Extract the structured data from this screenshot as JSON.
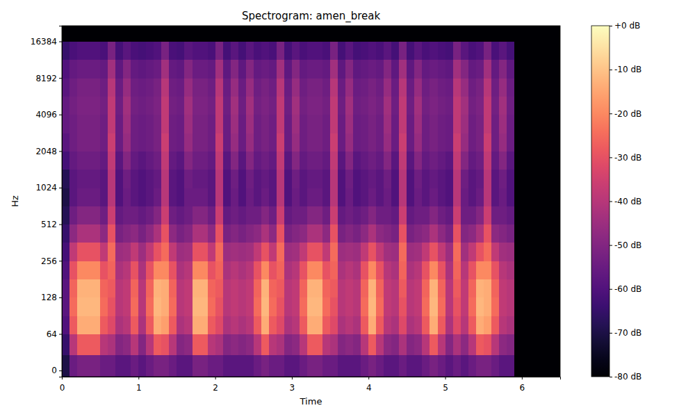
{
  "chart_data": {
    "type": "heatmap",
    "title": "Spectrogram: amen_break",
    "x_label": "Time",
    "y_label": "Hz",
    "log": "y",
    "color": "magma",
    "xlim": [
      0,
      6.5
    ],
    "xticks": [
      0,
      1,
      2,
      3,
      4,
      5,
      6
    ],
    "ylim": [
      -10.8,
      22050
    ],
    "yticks": [
      0,
      64,
      128,
      256,
      512,
      1024,
      2048,
      4096,
      8192,
      16384
    ],
    "x": [
      0,
      0.1,
      0.2,
      0.3,
      0.4,
      0.5,
      0.6,
      0.7,
      0.8,
      0.9,
      1,
      1.1,
      1.2,
      1.3,
      1.4,
      1.5,
      1.6,
      1.7,
      1.8,
      1.9,
      2,
      2.1,
      2.2,
      2.3,
      2.4,
      2.5,
      2.6,
      2.7,
      2.8,
      2.9,
      3,
      3.1,
      3.2,
      3.3,
      3.4,
      3.5,
      3.6,
      3.7,
      3.8,
      3.9,
      4,
      4.1,
      4.2,
      4.3,
      4.4,
      4.5,
      4.6,
      4.7,
      4.8,
      4.9,
      5,
      5.1,
      5.2,
      5.3,
      5.4,
      5.5,
      5.6,
      5.7,
      5.8,
      5.9,
      6,
      6.1,
      6.2,
      6.3,
      6.4,
      6.5
    ],
    "y": [
      -10.8,
      27,
      64,
      90,
      128,
      181,
      256,
      362,
      512,
      724,
      1024,
      1448,
      2048,
      2896,
      4096,
      5793,
      8192,
      11585,
      16384,
      22050
    ],
    "z": [
      [
        -70,
        -55,
        -52,
        -52,
        -52,
        -55,
        -55,
        -58,
        -58,
        -55,
        -58,
        -55,
        -52,
        -52,
        -55,
        -58,
        -58,
        -52,
        -52,
        -55,
        -55,
        -58,
        -58,
        -58,
        -58,
        -55,
        -52,
        -55,
        -55,
        -58,
        -58,
        -55,
        -52,
        -52,
        -55,
        -55,
        -58,
        -58,
        -58,
        -55,
        -52,
        -55,
        -58,
        -58,
        -55,
        -58,
        -58,
        -55,
        -52,
        -55,
        -58,
        -55,
        -58,
        -55,
        -52,
        -52,
        -55,
        -58,
        -58,
        -80,
        -80,
        -80,
        -80,
        -80,
        -80
      ],
      [
        -65,
        -40,
        -28,
        -28,
        -28,
        -40,
        -42,
        -50,
        -48,
        -40,
        -50,
        -40,
        -28,
        -30,
        -40,
        -50,
        -48,
        -28,
        -28,
        -40,
        -42,
        -50,
        -48,
        -50,
        -48,
        -40,
        -28,
        -40,
        -42,
        -50,
        -48,
        -40,
        -28,
        -28,
        -40,
        -42,
        -50,
        -48,
        -50,
        -40,
        -28,
        -40,
        -48,
        -50,
        -42,
        -50,
        -48,
        -40,
        -28,
        -40,
        -50,
        -42,
        -48,
        -40,
        -28,
        -30,
        -40,
        -48,
        -50,
        -80,
        -80,
        -80,
        -80,
        -80,
        -80
      ],
      [
        -60,
        -28,
        -14,
        -14,
        -14,
        -28,
        -32,
        -42,
        -40,
        -28,
        -42,
        -28,
        -14,
        -16,
        -28,
        -42,
        -40,
        -14,
        -14,
        -28,
        -32,
        -42,
        -40,
        -42,
        -40,
        -28,
        -14,
        -28,
        -32,
        -42,
        -40,
        -28,
        -14,
        -14,
        -28,
        -32,
        -42,
        -40,
        -42,
        -28,
        -14,
        -28,
        -40,
        -42,
        -32,
        -42,
        -40,
        -28,
        -14,
        -28,
        -42,
        -32,
        -40,
        -28,
        -14,
        -16,
        -28,
        -40,
        -42,
        -80,
        -80,
        -80,
        -80,
        -80,
        -80
      ],
      [
        -58,
        -25,
        -12,
        -12,
        -12,
        -25,
        -30,
        -40,
        -38,
        -25,
        -40,
        -25,
        -12,
        -14,
        -25,
        -40,
        -38,
        -12,
        -12,
        -25,
        -30,
        -40,
        -38,
        -40,
        -38,
        -25,
        -12,
        -25,
        -30,
        -40,
        -38,
        -25,
        -12,
        -12,
        -25,
        -30,
        -40,
        -38,
        -40,
        -25,
        -12,
        -25,
        -38,
        -40,
        -30,
        -40,
        -38,
        -25,
        -12,
        -25,
        -40,
        -30,
        -38,
        -25,
        -12,
        -14,
        -25,
        -38,
        -40,
        -80,
        -80,
        -80,
        -80,
        -80,
        -80
      ],
      [
        -58,
        -26,
        -13,
        -13,
        -13,
        -26,
        -28,
        -40,
        -38,
        -26,
        -40,
        -26,
        -13,
        -14,
        -26,
        -40,
        -38,
        -13,
        -13,
        -26,
        -28,
        -40,
        -38,
        -40,
        -38,
        -26,
        -13,
        -26,
        -28,
        -40,
        -38,
        -26,
        -13,
        -13,
        -26,
        -28,
        -40,
        -38,
        -40,
        -26,
        -13,
        -26,
        -38,
        -40,
        -28,
        -40,
        -38,
        -26,
        -13,
        -26,
        -40,
        -28,
        -38,
        -26,
        -13,
        -14,
        -26,
        -38,
        -40,
        -80,
        -80,
        -80,
        -80,
        -80,
        -80
      ],
      [
        -60,
        -30,
        -20,
        -20,
        -20,
        -30,
        -26,
        -42,
        -40,
        -30,
        -42,
        -30,
        -20,
        -20,
        -30,
        -42,
        -40,
        -20,
        -20,
        -30,
        -26,
        -42,
        -40,
        -42,
        -40,
        -30,
        -20,
        -30,
        -26,
        -42,
        -40,
        -30,
        -20,
        -20,
        -30,
        -26,
        -42,
        -40,
        -42,
        -30,
        -20,
        -30,
        -40,
        -42,
        -26,
        -42,
        -40,
        -30,
        -20,
        -30,
        -42,
        -26,
        -40,
        -30,
        -20,
        -20,
        -30,
        -40,
        -42,
        -80,
        -80,
        -80,
        -80,
        -80,
        -80
      ],
      [
        -62,
        -38,
        -30,
        -30,
        -30,
        -38,
        -25,
        -45,
        -44,
        -38,
        -45,
        -38,
        -30,
        -25,
        -38,
        -45,
        -44,
        -30,
        -30,
        -38,
        -25,
        -45,
        -44,
        -45,
        -44,
        -38,
        -30,
        -38,
        -25,
        -45,
        -44,
        -38,
        -30,
        -30,
        -38,
        -25,
        -45,
        -44,
        -45,
        -38,
        -30,
        -38,
        -44,
        -45,
        -25,
        -45,
        -44,
        -38,
        -30,
        -38,
        -45,
        -25,
        -44,
        -38,
        -30,
        -25,
        -38,
        -44,
        -45,
        -80,
        -80,
        -80,
        -80,
        -80,
        -80
      ],
      [
        -65,
        -48,
        -42,
        -42,
        -42,
        -48,
        -30,
        -52,
        -50,
        -48,
        -52,
        -48,
        -42,
        -30,
        -48,
        -52,
        -50,
        -42,
        -42,
        -48,
        -30,
        -52,
        -50,
        -52,
        -50,
        -48,
        -42,
        -48,
        -30,
        -52,
        -50,
        -48,
        -42,
        -42,
        -48,
        -30,
        -52,
        -50,
        -52,
        -48,
        -42,
        -48,
        -50,
        -52,
        -30,
        -52,
        -50,
        -48,
        -42,
        -48,
        -52,
        -30,
        -50,
        -48,
        -42,
        -30,
        -48,
        -50,
        -52,
        -80,
        -80,
        -80,
        -80,
        -80,
        -80
      ],
      [
        -68,
        -54,
        -50,
        -50,
        -50,
        -54,
        -36,
        -56,
        -54,
        -54,
        -56,
        -54,
        -50,
        -36,
        -54,
        -56,
        -54,
        -50,
        -50,
        -54,
        -36,
        -56,
        -54,
        -56,
        -54,
        -54,
        -50,
        -54,
        -36,
        -56,
        -54,
        -54,
        -50,
        -50,
        -54,
        -36,
        -56,
        -54,
        -56,
        -54,
        -50,
        -54,
        -54,
        -56,
        -36,
        -56,
        -54,
        -54,
        -50,
        -54,
        -56,
        -36,
        -54,
        -54,
        -50,
        -36,
        -54,
        -54,
        -56,
        -80,
        -80,
        -80,
        -80,
        -80,
        -80
      ],
      [
        -70,
        -58,
        -55,
        -55,
        -55,
        -58,
        -40,
        -60,
        -55,
        -58,
        -60,
        -58,
        -55,
        -40,
        -58,
        -60,
        -55,
        -55,
        -55,
        -58,
        -40,
        -60,
        -55,
        -60,
        -55,
        -58,
        -55,
        -58,
        -40,
        -60,
        -55,
        -58,
        -55,
        -55,
        -58,
        -40,
        -60,
        -55,
        -60,
        -58,
        -55,
        -58,
        -55,
        -60,
        -40,
        -60,
        -55,
        -58,
        -55,
        -58,
        -60,
        -40,
        -55,
        -58,
        -55,
        -40,
        -58,
        -55,
        -60,
        -80,
        -80,
        -80,
        -80,
        -80,
        -80
      ],
      [
        -68,
        -58,
        -56,
        -56,
        -56,
        -58,
        -40,
        -60,
        -54,
        -58,
        -60,
        -58,
        -56,
        -40,
        -58,
        -60,
        -54,
        -56,
        -56,
        -58,
        -40,
        -60,
        -54,
        -60,
        -54,
        -58,
        -56,
        -58,
        -40,
        -60,
        -54,
        -58,
        -56,
        -56,
        -58,
        -40,
        -60,
        -54,
        -60,
        -58,
        -56,
        -58,
        -54,
        -60,
        -40,
        -60,
        -54,
        -58,
        -56,
        -58,
        -60,
        -40,
        -54,
        -58,
        -56,
        -40,
        -58,
        -54,
        -60,
        -80,
        -80,
        -80,
        -80,
        -80,
        -80
      ],
      [
        -62,
        -56,
        -54,
        -54,
        -54,
        -56,
        -38,
        -58,
        -50,
        -56,
        -58,
        -56,
        -54,
        -38,
        -56,
        -58,
        -50,
        -54,
        -54,
        -56,
        -38,
        -58,
        -50,
        -58,
        -50,
        -56,
        -54,
        -56,
        -38,
        -58,
        -50,
        -56,
        -54,
        -54,
        -56,
        -38,
        -58,
        -50,
        -58,
        -56,
        -54,
        -56,
        -50,
        -58,
        -38,
        -58,
        -50,
        -56,
        -54,
        -56,
        -58,
        -38,
        -50,
        -56,
        -54,
        -38,
        -56,
        -50,
        -58,
        -80,
        -80,
        -80,
        -80,
        -80,
        -80
      ],
      [
        -58,
        -54,
        -52,
        -52,
        -52,
        -54,
        -36,
        -55,
        -46,
        -54,
        -55,
        -54,
        -52,
        -36,
        -54,
        -55,
        -46,
        -52,
        -52,
        -54,
        -36,
        -55,
        -46,
        -55,
        -46,
        -54,
        -52,
        -54,
        -36,
        -55,
        -46,
        -54,
        -52,
        -52,
        -54,
        -36,
        -55,
        -46,
        -55,
        -54,
        -52,
        -54,
        -46,
        -55,
        -36,
        -55,
        -46,
        -54,
        -52,
        -54,
        -55,
        -36,
        -46,
        -54,
        -52,
        -36,
        -54,
        -46,
        -55,
        -80,
        -80,
        -80,
        -80,
        -80,
        -80
      ],
      [
        -56,
        -54,
        -52,
        -52,
        -52,
        -54,
        -38,
        -55,
        -45,
        -54,
        -55,
        -54,
        -52,
        -38,
        -54,
        -55,
        -45,
        -52,
        -52,
        -54,
        -38,
        -55,
        -45,
        -55,
        -45,
        -54,
        -52,
        -54,
        -38,
        -55,
        -45,
        -54,
        -52,
        -52,
        -54,
        -38,
        -55,
        -45,
        -55,
        -54,
        -52,
        -54,
        -45,
        -55,
        -38,
        -55,
        -45,
        -54,
        -52,
        -54,
        -55,
        -38,
        -45,
        -54,
        -52,
        -38,
        -54,
        -45,
        -55,
        -80,
        -80,
        -80,
        -80,
        -80,
        -80
      ],
      [
        -56,
        -53,
        -51,
        -51,
        -51,
        -53,
        -38,
        -54,
        -44,
        -53,
        -54,
        -53,
        -51,
        -38,
        -53,
        -54,
        -44,
        -51,
        -51,
        -53,
        -38,
        -54,
        -44,
        -54,
        -44,
        -53,
        -51,
        -53,
        -38,
        -54,
        -44,
        -53,
        -51,
        -51,
        -53,
        -38,
        -54,
        -44,
        -54,
        -53,
        -51,
        -53,
        -44,
        -54,
        -38,
        -54,
        -44,
        -53,
        -51,
        -53,
        -54,
        -38,
        -44,
        -53,
        -51,
        -38,
        -53,
        -44,
        -54,
        -80,
        -80,
        -80,
        -80,
        -80,
        -80
      ],
      [
        -58,
        -54,
        -52,
        -52,
        -52,
        -54,
        -40,
        -55,
        -46,
        -54,
        -55,
        -54,
        -52,
        -40,
        -54,
        -55,
        -46,
        -52,
        -52,
        -54,
        -40,
        -55,
        -46,
        -55,
        -46,
        -54,
        -52,
        -54,
        -40,
        -55,
        -46,
        -54,
        -52,
        -52,
        -54,
        -40,
        -55,
        -46,
        -55,
        -54,
        -52,
        -54,
        -46,
        -55,
        -40,
        -55,
        -46,
        -54,
        -52,
        -54,
        -55,
        -40,
        -46,
        -54,
        -52,
        -40,
        -54,
        -46,
        -55,
        -80,
        -80,
        -80,
        -80,
        -80,
        -80
      ],
      [
        -60,
        -56,
        -55,
        -55,
        -55,
        -56,
        -44,
        -57,
        -50,
        -56,
        -57,
        -56,
        -55,
        -44,
        -56,
        -57,
        -50,
        -55,
        -55,
        -56,
        -44,
        -57,
        -50,
        -57,
        -50,
        -56,
        -55,
        -56,
        -44,
        -57,
        -50,
        -56,
        -55,
        -55,
        -56,
        -44,
        -57,
        -50,
        -57,
        -56,
        -55,
        -56,
        -50,
        -57,
        -44,
        -57,
        -50,
        -56,
        -55,
        -56,
        -57,
        -44,
        -50,
        -56,
        -55,
        -44,
        -56,
        -50,
        -57,
        -80,
        -80,
        -80,
        -80,
        -80,
        -80
      ],
      [
        -65,
        -61,
        -60,
        -60,
        -60,
        -61,
        -52,
        -62,
        -58,
        -61,
        -62,
        -61,
        -60,
        -52,
        -61,
        -62,
        -58,
        -60,
        -60,
        -61,
        -52,
        -62,
        -58,
        -62,
        -58,
        -61,
        -60,
        -61,
        -52,
        -62,
        -58,
        -61,
        -60,
        -60,
        -61,
        -52,
        -62,
        -58,
        -62,
        -61,
        -60,
        -61,
        -58,
        -62,
        -52,
        -62,
        -58,
        -61,
        -60,
        -61,
        -62,
        -52,
        -58,
        -61,
        -60,
        -52,
        -61,
        -58,
        -62,
        -80,
        -80,
        -80,
        -80,
        -80,
        -80
      ],
      [
        -80,
        -80,
        -80,
        -80,
        -80,
        -80,
        -80,
        -80,
        -80,
        -80,
        -80,
        -80,
        -80,
        -80,
        -80,
        -80,
        -80,
        -80,
        -80,
        -80,
        -80,
        -80,
        -80,
        -80,
        -80,
        -80,
        -80,
        -80,
        -80,
        -80,
        -80,
        -80,
        -80,
        -80,
        -80,
        -80,
        -80,
        -80,
        -80,
        -80,
        -80,
        -80,
        -80,
        -80,
        -80,
        -80,
        -80,
        -80,
        -80,
        -80,
        -80,
        -80,
        -80,
        -80,
        -80,
        -80,
        -80,
        -80,
        -80,
        -80,
        -80,
        -80,
        -80,
        -80,
        -80
      ]
    ],
    "colorbar": {
      "range": [
        -80,
        0
      ],
      "ticks": [
        {
          "value": 0,
          "label": "+0 dB"
        },
        {
          "value": -10,
          "label": "-10 dB"
        },
        {
          "value": -20,
          "label": "-20 dB"
        },
        {
          "value": -30,
          "label": "-30 dB"
        },
        {
          "value": -40,
          "label": "-40 dB"
        },
        {
          "value": -50,
          "label": "-50 dB"
        },
        {
          "value": -60,
          "label": "-60 dB"
        },
        {
          "value": -70,
          "label": "-70 dB"
        },
        {
          "value": -80,
          "label": "-80 dB"
        }
      ]
    }
  }
}
